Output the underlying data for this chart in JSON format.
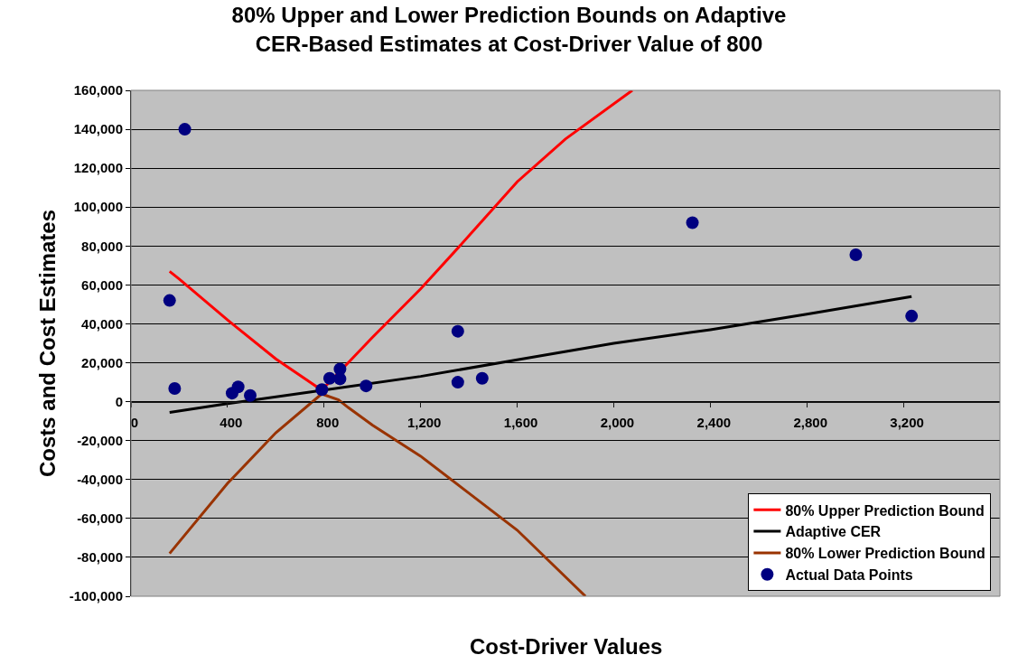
{
  "chart_data": {
    "type": "scatter",
    "title": "80% Upper and Lower Prediction Bounds on Adaptive CER-Based Estimates at Cost-Driver Value of 800",
    "xlabel": "Cost-Driver Values",
    "ylabel": "Costs and Cost Estimates",
    "xlim": [
      0,
      3600
    ],
    "xticks": [
      0,
      400,
      800,
      {
        "value": 1200,
        "label": "1,200"
      },
      {
        "value": 1600,
        "label": "1,600"
      },
      {
        "value": 2000,
        "label": "2,000"
      },
      {
        "value": 2400,
        "label": "2,400"
      },
      {
        "value": 2800,
        "label": "2,800"
      },
      {
        "value": 3200,
        "label": "3,200"
      }
    ],
    "ylim": [
      -100000,
      160000
    ],
    "yticks": [
      {
        "value": -100000,
        "label": "-100,000"
      },
      {
        "value": -80000,
        "label": "-80,000"
      },
      {
        "value": -60000,
        "label": "-60,000"
      },
      {
        "value": -40000,
        "label": "-40,000"
      },
      {
        "value": -20000,
        "label": "-20,000"
      },
      0,
      {
        "value": 20000,
        "label": "20,000"
      },
      {
        "value": 40000,
        "label": "40,000"
      },
      {
        "value": 60000,
        "label": "60,000"
      },
      {
        "value": 80000,
        "label": "80,000"
      },
      {
        "value": 100000,
        "label": "100,000"
      },
      {
        "value": 120000,
        "label": "120,000"
      },
      {
        "value": 140000,
        "label": "140,000"
      },
      {
        "value": 160000,
        "label": "160,000"
      }
    ],
    "grid": "y",
    "legend": "bottom right",
    "series": [
      {
        "name": "Actual Data Points",
        "marker": "circle",
        "color": "#000080",
        "x": [
          160,
          181,
          223,
          419,
          444,
          494,
          791,
          823,
          866,
          866,
          974,
          1354,
          1354,
          1455,
          2326,
          3003,
          3234
        ],
        "values": [
          52000,
          6800,
          140000,
          4400,
          7600,
          3200,
          6200,
          12000,
          16800,
          11700,
          8100,
          36200,
          10000,
          12000,
          92000,
          75500,
          44000
        ]
      },
      {
        "name": "80% Upper Prediction Bound",
        "type": "line",
        "color": "#ff0000",
        "x": [
          160,
          200,
          400,
          600,
          790,
          900,
          1000,
          1200,
          1362,
          1600,
          1800,
          2077
        ],
        "values": [
          67000,
          63000,
          42000,
          22000,
          6000,
          20000,
          33000,
          58000,
          80000,
          113000,
          135000,
          160000
        ]
      },
      {
        "name": "Adaptive CER",
        "type": "line",
        "color": "#000000",
        "x": [
          160,
          400,
          800,
          1200,
          1600,
          2000,
          2400,
          2800,
          3234
        ],
        "values": [
          -5500,
          -1000,
          6000,
          13000,
          21500,
          30000,
          37000,
          45000,
          54000
        ]
      },
      {
        "name": "80% Lower Prediction Bound",
        "type": "line",
        "color": "#993300",
        "x": [
          160,
          400,
          600,
          790,
          860,
          900,
          1000,
          1200,
          1400,
          1600,
          1883
        ],
        "values": [
          -78000,
          -42000,
          -16000,
          4000,
          1000,
          -3000,
          -12000,
          -28000,
          -47000,
          -66000,
          -100000
        ]
      }
    ]
  }
}
